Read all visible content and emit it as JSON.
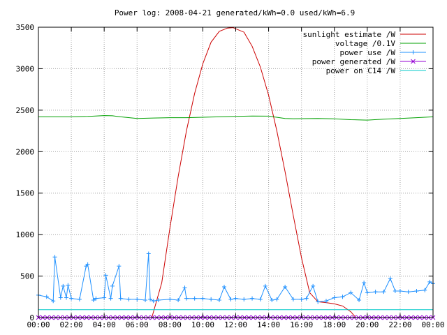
{
  "chart_data": {
    "type": "line",
    "title": "Power log: 2008-04-21 generated/kWh=0.0 used/kWh=6.9",
    "xlabel": "",
    "ylabel": "",
    "xlim": [
      0,
      24
    ],
    "ylim": [
      0,
      3500
    ],
    "grid": true,
    "legend_position": "top-right",
    "x_tick_labels": [
      "00:00",
      "02:00",
      "04:00",
      "06:00",
      "08:00",
      "10:00",
      "12:00",
      "14:00",
      "16:00",
      "18:00",
      "20:00",
      "22:00",
      "00:00"
    ],
    "y_tick_labels": [
      "0",
      "500",
      "1000",
      "1500",
      "2000",
      "2500",
      "3000",
      "3500"
    ],
    "y_ticks": [
      0,
      500,
      1000,
      1500,
      2000,
      2500,
      3000,
      3500
    ],
    "series": [
      {
        "name": "sunlight estimate /W",
        "color": "#cc0000",
        "marker": "none",
        "x": [
          6.9,
          7.5,
          8,
          8.5,
          9,
          9.5,
          10,
          10.5,
          11,
          11.5,
          11.83,
          12.5,
          13,
          13.5,
          14,
          14.5,
          15,
          15.5,
          16,
          16.5,
          17,
          17.5,
          18,
          18.5,
          19,
          19.3
        ],
        "y": [
          0,
          420,
          1080,
          1700,
          2250,
          2700,
          3060,
          3320,
          3450,
          3490,
          3495,
          3440,
          3270,
          3020,
          2680,
          2250,
          1760,
          1230,
          720,
          300,
          190,
          180,
          165,
          140,
          70,
          0
        ]
      },
      {
        "name": "voltage /0.1V",
        "color": "#00a000",
        "marker": "none",
        "x": [
          0,
          1,
          2,
          3,
          4,
          4.5,
          5,
          6,
          7,
          8,
          9,
          10,
          11,
          12,
          13,
          14,
          15,
          15.5,
          16,
          17,
          18,
          19,
          20,
          21,
          22,
          23,
          24
        ],
        "y": [
          2420,
          2420,
          2420,
          2425,
          2435,
          2432,
          2420,
          2400,
          2405,
          2410,
          2410,
          2415,
          2420,
          2425,
          2430,
          2428,
          2400,
          2397,
          2398,
          2400,
          2395,
          2385,
          2380,
          2392,
          2400,
          2410,
          2420
        ]
      },
      {
        "name": "power use /W",
        "color": "#1e90ff",
        "marker": "plus",
        "x": [
          0,
          0.5,
          0.9,
          1,
          1.35,
          1.5,
          1.7,
          1.8,
          2,
          2.5,
          2.9,
          3,
          3.35,
          3.5,
          4,
          4.1,
          4.4,
          4.5,
          4.9,
          5,
          5.5,
          6,
          6.5,
          6.7,
          6.8,
          7,
          7.3,
          8,
          8.5,
          8.9,
          9,
          9.5,
          10,
          10.5,
          11,
          11.3,
          11.7,
          12,
          12.5,
          13,
          13.5,
          13.8,
          14.2,
          14.5,
          15,
          15.5,
          16,
          16.3,
          16.7,
          17,
          17.5,
          18,
          18.5,
          19,
          19.5,
          19.8,
          20,
          20.5,
          21,
          21.4,
          21.7,
          22,
          22.5,
          23,
          23.5,
          23.8,
          24
        ],
        "y": [
          270,
          250,
          200,
          730,
          240,
          380,
          240,
          390,
          230,
          220,
          620,
          640,
          210,
          230,
          240,
          510,
          230,
          380,
          620,
          230,
          220,
          220,
          210,
          770,
          220,
          200,
          210,
          220,
          210,
          360,
          230,
          230,
          230,
          220,
          210,
          370,
          220,
          230,
          220,
          230,
          220,
          380,
          210,
          220,
          370,
          220,
          220,
          230,
          380,
          190,
          200,
          240,
          250,
          300,
          210,
          420,
          300,
          310,
          310,
          470,
          320,
          320,
          310,
          320,
          330,
          430,
          410
        ]
      },
      {
        "name": "power generated /W",
        "color": "#9400d3",
        "marker": "x",
        "x": [
          0,
          24
        ],
        "y": [
          0,
          0
        ]
      },
      {
        "name": "power on C14 /W",
        "color": "#00c8c8",
        "marker": "none",
        "x": [
          0,
          24
        ],
        "y": [
          95,
          95
        ]
      }
    ]
  }
}
